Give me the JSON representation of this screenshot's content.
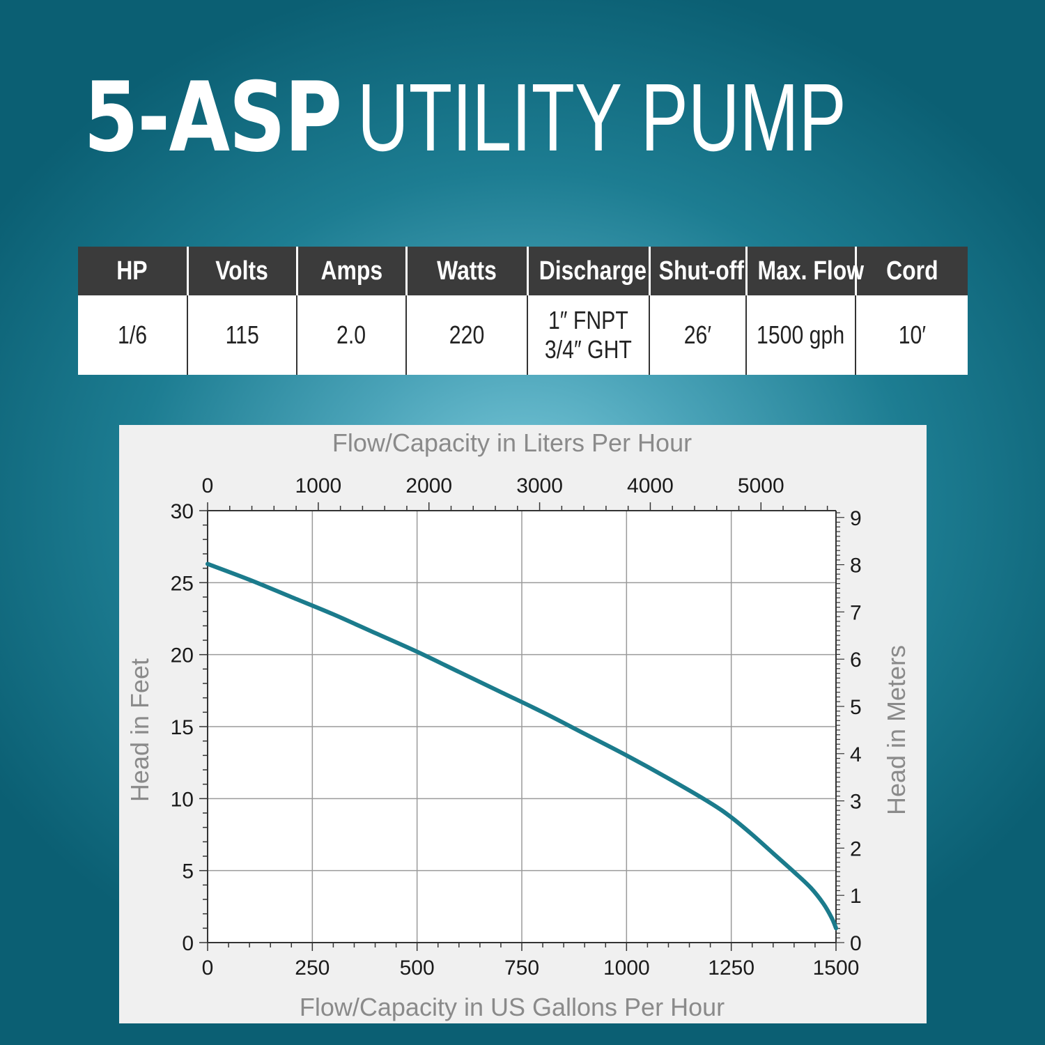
{
  "title": {
    "model": "5-ASP",
    "rest": "UTILITY PUMP"
  },
  "specs": {
    "headers": [
      "HP",
      "Volts",
      "Amps",
      "Watts",
      "Discharge",
      "Shut-off",
      "Max. Flow",
      "Cord"
    ],
    "values": [
      "1/6",
      "115",
      "2.0",
      "220",
      "1″ FNPT",
      "26′",
      "1500 gph",
      "10′"
    ],
    "discharge_line2": "3/4″ GHT"
  },
  "chart_data": {
    "type": "line",
    "title": "",
    "xlabel": "Flow/Capacity in US Gallons Per Hour",
    "ylabel": "Head in Feet",
    "x2label": "Flow/Capacity in Liters Per Hour",
    "y2label": "Head in Meters",
    "xlim": [
      0,
      1500
    ],
    "ylim": [
      0,
      30
    ],
    "x2lim": [
      0,
      5678
    ],
    "y2lim": [
      0,
      9.144
    ],
    "xticks": [
      "0",
      "250",
      "500",
      "750",
      "1000",
      "1250",
      "1500"
    ],
    "yticks": [
      "0",
      "5",
      "10",
      "15",
      "20",
      "25",
      "30"
    ],
    "x2ticks": [
      "0",
      "1000",
      "2000",
      "3000",
      "4000",
      "5000"
    ],
    "y2ticks": [
      "0",
      "1",
      "2",
      "3",
      "4",
      "5",
      "6",
      "7",
      "8",
      "9"
    ],
    "grid": true,
    "color": "#1b7b8c",
    "series": [
      {
        "x": [
          0,
          100,
          200,
          300,
          400,
          500,
          600,
          700,
          800,
          900,
          1000,
          1100,
          1200,
          1250,
          1300,
          1350,
          1400,
          1440,
          1470,
          1490,
          1500
        ],
        "y": [
          26.3,
          25.2,
          24.0,
          22.8,
          21.5,
          20.2,
          18.8,
          17.4,
          16.0,
          14.5,
          13.0,
          11.4,
          9.7,
          8.7,
          7.5,
          6.2,
          4.9,
          3.8,
          2.7,
          1.7,
          1.0
        ]
      }
    ]
  }
}
